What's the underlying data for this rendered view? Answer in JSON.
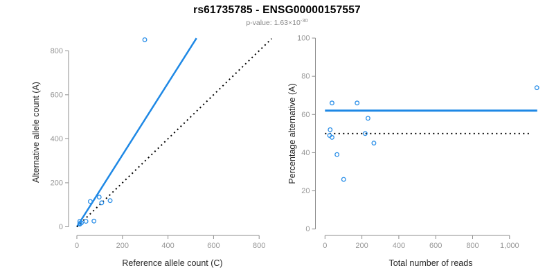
{
  "header": {
    "title": "rs61735785 - ENSG00000157557",
    "pvalue_prefix": "p-value: 1.63×10",
    "pvalue_exponent": "-30"
  },
  "colors": {
    "accent_blue": "#1e88e5",
    "point_blue": "#2b8fe8",
    "axis_gray": "#8d8d8d",
    "tick_text_gray": "#969696",
    "axis_title_dark": "#262626",
    "dotted_black": "#000000"
  },
  "chart_data": [
    {
      "type": "scatter",
      "name": "allele-counts-scatter",
      "xlabel": "Reference allele count (C)",
      "ylabel": "Alternative allele count (A)",
      "xlim": [
        0,
        860
      ],
      "ylim": [
        0,
        860
      ],
      "xticks": [
        0,
        200,
        400,
        600,
        800
      ],
      "xtick_labels": [
        "0",
        "200",
        "400",
        "600",
        "800"
      ],
      "yticks": [
        0,
        200,
        400,
        600,
        800
      ],
      "ytick_labels": [
        "0",
        "200",
        "400",
        "600",
        "800"
      ],
      "grid": false,
      "points": [
        [
          13,
          25
        ],
        [
          13,
          15
        ],
        [
          13,
          12
        ],
        [
          20,
          18
        ],
        [
          40,
          25
        ],
        [
          75,
          26
        ],
        [
          59,
          115
        ],
        [
          98,
          135
        ],
        [
          109,
          109
        ],
        [
          146,
          119
        ],
        [
          298,
          850
        ]
      ],
      "lines": [
        {
          "name": "fit-line",
          "style": "solid",
          "color": "blue",
          "x1": 0,
          "y1": 0,
          "x2": 525,
          "y2": 857,
          "width": 2.5
        },
        {
          "name": "identity-line",
          "style": "dotted",
          "color": "black",
          "x1": 0,
          "y1": 0,
          "x2": 855,
          "y2": 855,
          "width": 2
        }
      ]
    },
    {
      "type": "scatter",
      "name": "percentage-vs-reads-scatter",
      "xlabel": "Total number of reads",
      "ylabel": "Percentage alternative (A)",
      "xlim": [
        0,
        1160
      ],
      "ylim": [
        0,
        100
      ],
      "xticks": [
        0,
        200,
        400,
        600,
        800,
        1000
      ],
      "xtick_labels": [
        "0",
        "200",
        "400",
        "600",
        "800",
        "1,000"
      ],
      "yticks": [
        0,
        20,
        40,
        60,
        80,
        100
      ],
      "ytick_labels": [
        "0",
        "20",
        "40",
        "60",
        "80",
        "100"
      ],
      "grid": false,
      "points": [
        [
          38,
          66
        ],
        [
          28,
          52
        ],
        [
          25,
          49
        ],
        [
          38,
          48
        ],
        [
          65,
          39
        ],
        [
          101,
          26
        ],
        [
          174,
          66
        ],
        [
          233,
          58
        ],
        [
          218,
          50
        ],
        [
          265,
          45
        ],
        [
          1148,
          74
        ]
      ],
      "lines": [
        {
          "name": "mean-percentage-line",
          "style": "solid",
          "color": "blue",
          "x1": 0,
          "y1": 62,
          "x2": 1150,
          "y2": 62,
          "width": 3
        },
        {
          "name": "fifty-percent-line",
          "style": "dotted",
          "color": "black",
          "x1": 0,
          "y1": 50,
          "x2": 1120,
          "y2": 50,
          "width": 2
        }
      ]
    }
  ]
}
